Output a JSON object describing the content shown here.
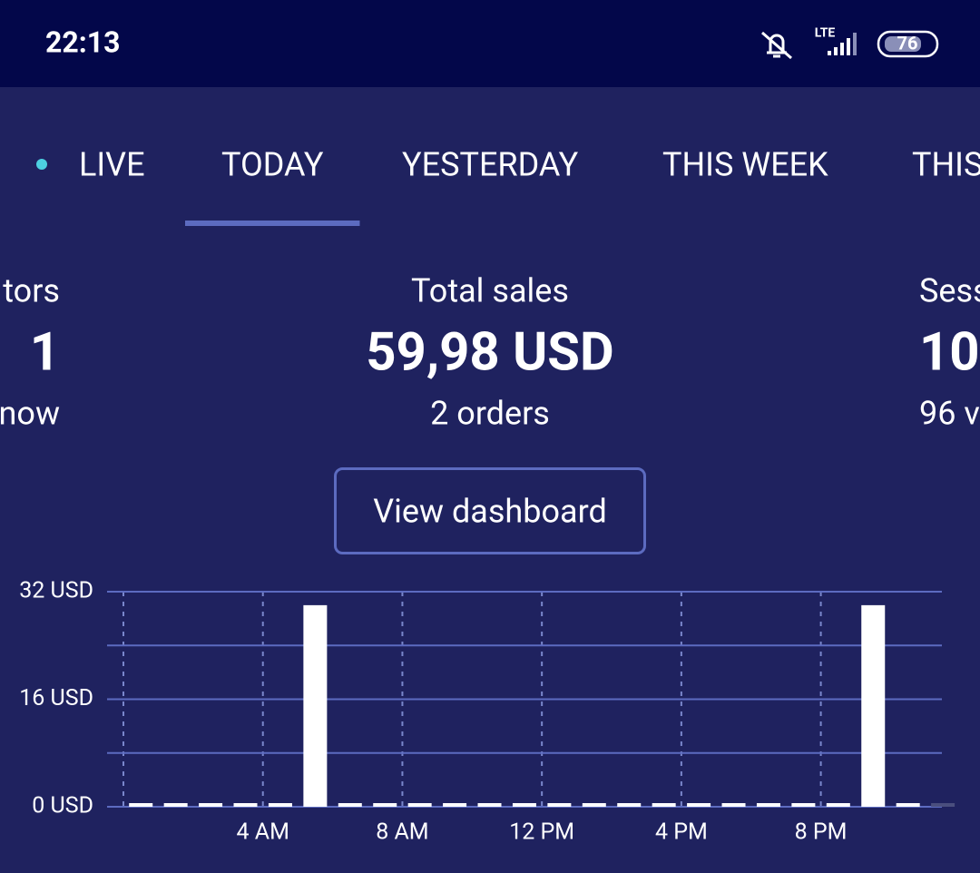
{
  "status_bar": {
    "time": "22:13",
    "network": "LTE",
    "battery": "76"
  },
  "tabs": [
    {
      "label": "LIVE"
    },
    {
      "label": "TODAY",
      "active": true
    },
    {
      "label": "YESTERDAY"
    },
    {
      "label": "THIS WEEK"
    },
    {
      "label": "THIS"
    }
  ],
  "stats": [
    {
      "label": "tors",
      "value": "1",
      "detail": "now"
    },
    {
      "label": "Total sales",
      "value": "59,98 USD",
      "detail": "2 orders"
    },
    {
      "label": "Sess",
      "value": "10",
      "detail": "96 v"
    }
  ],
  "button": "View dashboard",
  "chart_data": {
    "type": "bar",
    "categories": [
      null,
      null,
      null,
      null,
      "4 AM",
      null,
      null,
      null,
      "8 AM",
      null,
      null,
      null,
      "12 PM",
      null,
      null,
      null,
      "4 PM",
      null,
      null,
      null,
      "8 PM",
      null,
      null,
      null
    ],
    "values": [
      0,
      0,
      0,
      0,
      0,
      29.99,
      0,
      0,
      0,
      0,
      0,
      0,
      0,
      0,
      0,
      0,
      0,
      0,
      0,
      0,
      0,
      29.99,
      0,
      null
    ],
    "color": "#ffffff",
    "ylim": [
      0,
      32
    ],
    "yticks": [
      {
        "value": 0,
        "label": "0 USD"
      },
      {
        "value": 16,
        "label": "16 USD"
      },
      {
        "value": 32,
        "label": "32 USD"
      }
    ],
    "minor_yticks": [
      8,
      24
    ],
    "grid": true
  }
}
